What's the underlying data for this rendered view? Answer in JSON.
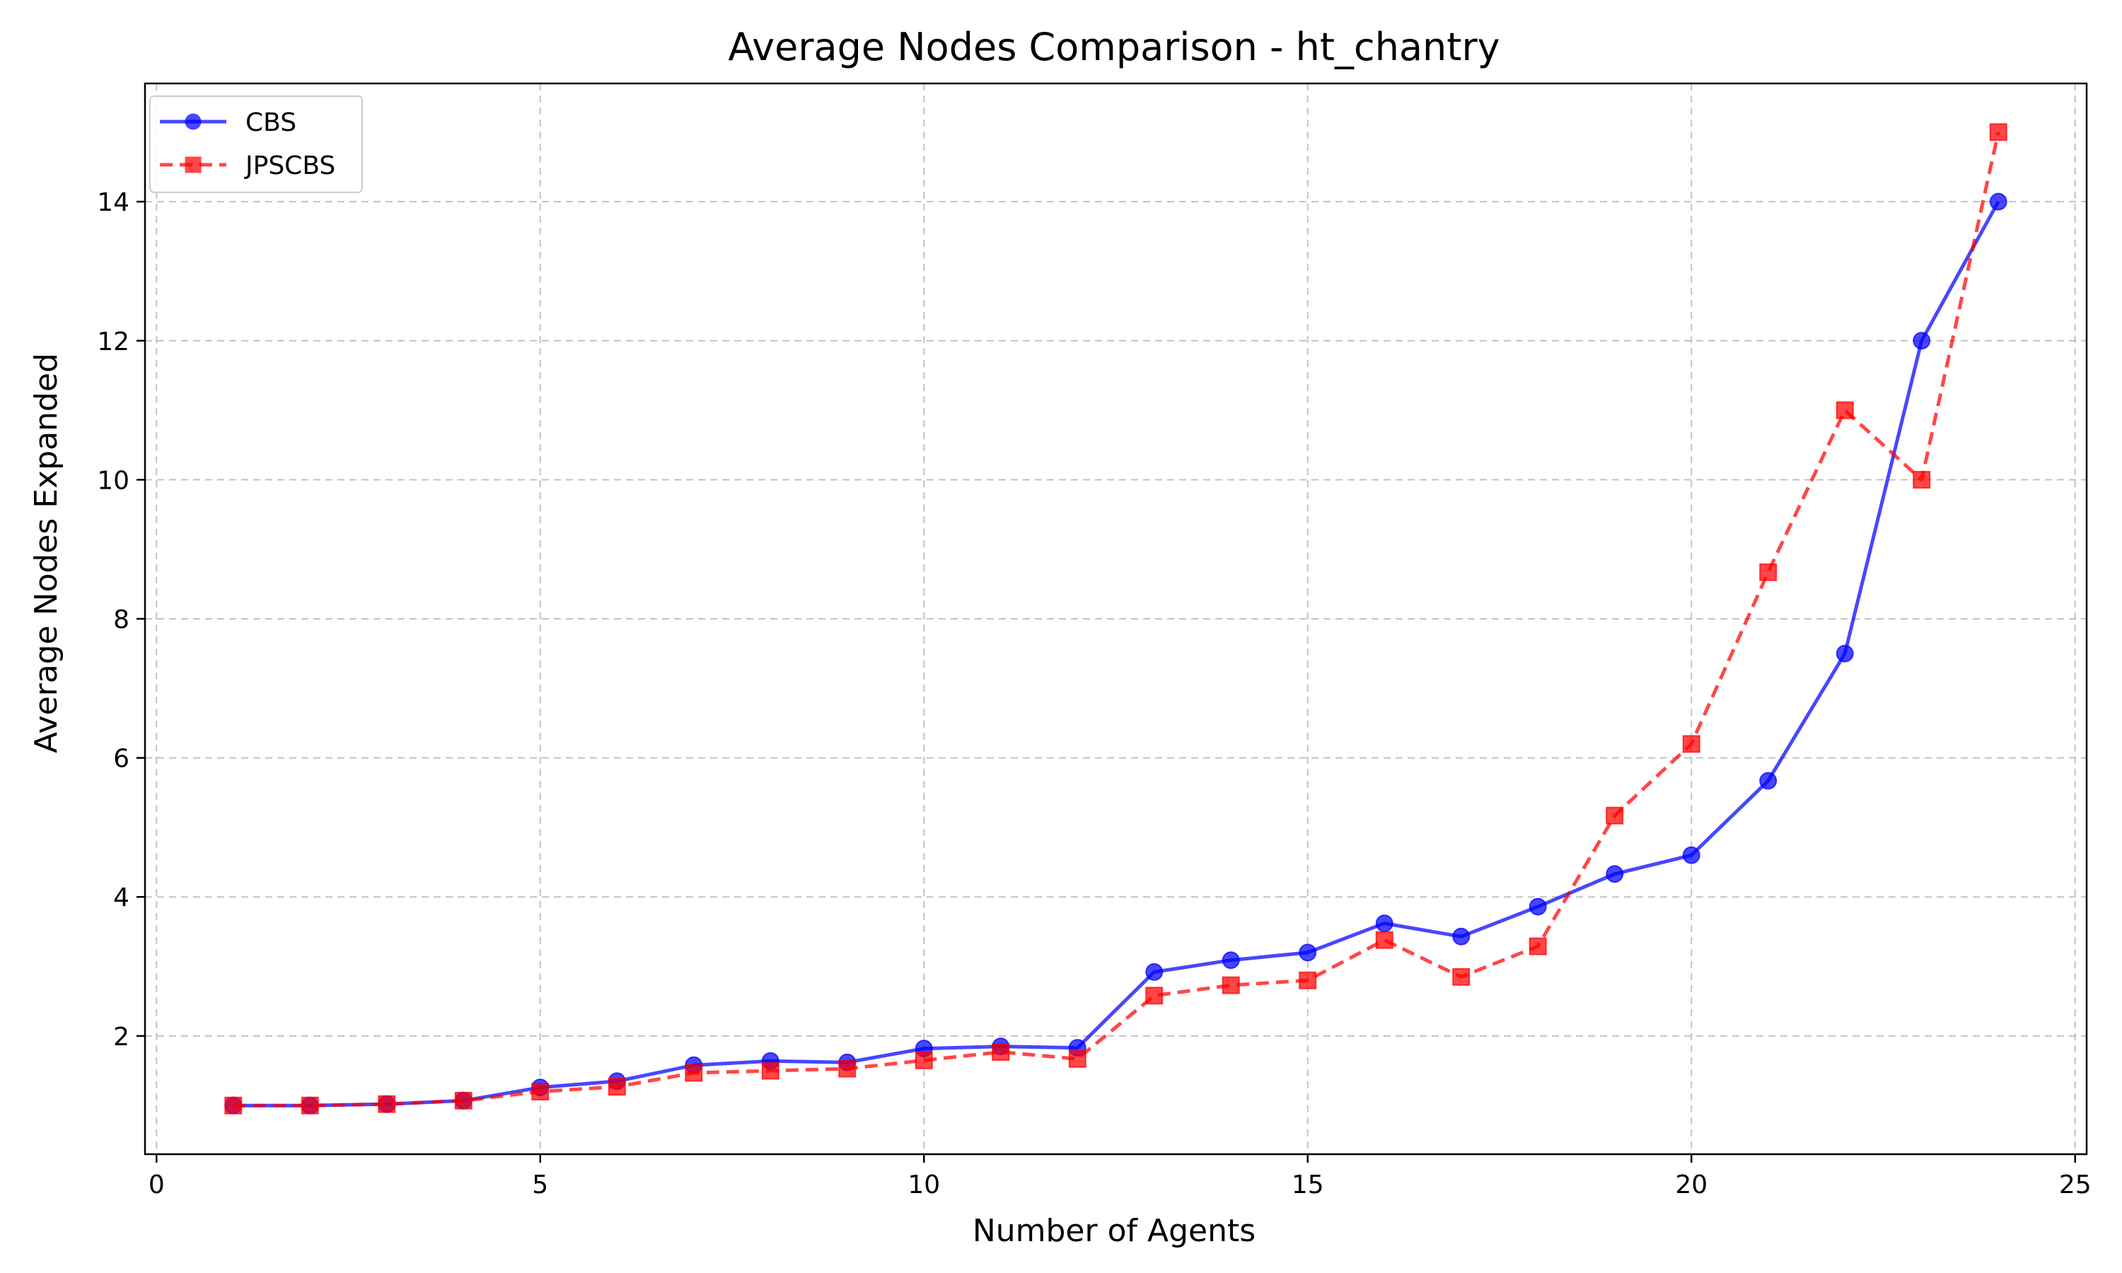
{
  "chart_data": {
    "type": "line",
    "title": "Average Nodes Comparison - ht_chantry",
    "xlabel": "Number of Agents",
    "ylabel": "Average Nodes Expanded",
    "xlim": [
      -0.15,
      25.15
    ],
    "ylim": [
      0.3,
      15.7
    ],
    "xticks": [
      0,
      5,
      10,
      15,
      20,
      25
    ],
    "yticks": [
      2,
      4,
      6,
      8,
      10,
      12,
      14
    ],
    "grid": true,
    "legend_position": "upper-left",
    "x": [
      1,
      2,
      3,
      4,
      5,
      6,
      7,
      8,
      9,
      10,
      11,
      12,
      13,
      14,
      15,
      16,
      17,
      18,
      19,
      20,
      21,
      22,
      23,
      24
    ],
    "series": [
      {
        "name": "CBS",
        "color": "#0000ff",
        "line_style": "solid",
        "marker": "circle",
        "values": [
          1.0,
          1.0,
          1.02,
          1.07,
          1.26,
          1.35,
          1.58,
          1.64,
          1.62,
          1.82,
          1.85,
          1.83,
          2.92,
          3.09,
          3.2,
          3.62,
          3.43,
          3.86,
          4.33,
          4.6,
          5.67,
          7.5,
          12.0,
          14.0
        ]
      },
      {
        "name": "JPSCBS",
        "color": "#ff0000",
        "line_style": "dashed",
        "marker": "square",
        "values": [
          1.0,
          1.0,
          1.02,
          1.07,
          1.2,
          1.27,
          1.47,
          1.5,
          1.53,
          1.65,
          1.77,
          1.67,
          2.58,
          2.73,
          2.8,
          3.38,
          2.85,
          3.29,
          5.17,
          6.2,
          8.67,
          11.0,
          10.0,
          15.0
        ]
      }
    ]
  }
}
